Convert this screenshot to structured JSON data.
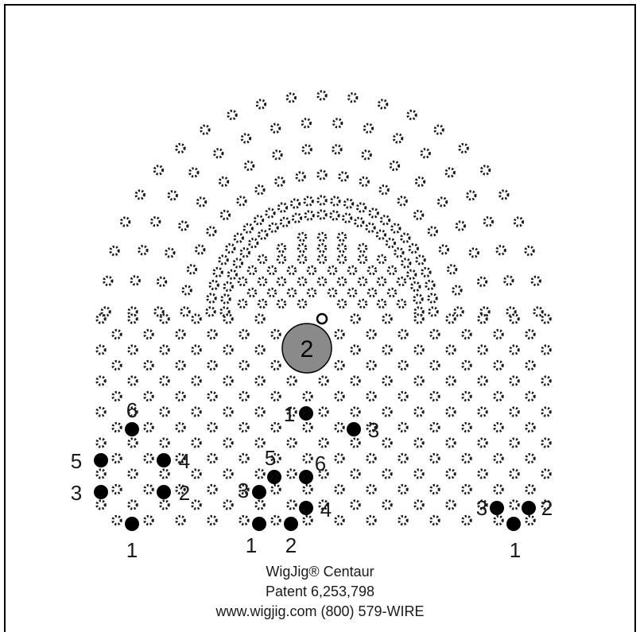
{
  "product": "WigJig® Centaur",
  "patent": "Patent 6,253,798",
  "contact": "www.wigjig.com (800) 579-WIRE",
  "center_peg_label": "2",
  "peg_labels": [
    "1",
    "2",
    "3",
    "4",
    "5",
    "6"
  ]
}
